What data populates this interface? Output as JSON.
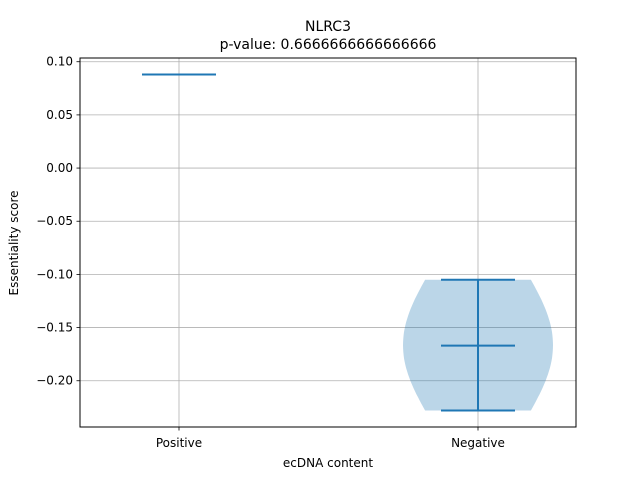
{
  "chart_data": {
    "type": "violin",
    "title": "NLRC3",
    "subtitle": "p-value: 0.6666666666666666",
    "xlabel": "ecDNA content",
    "ylabel": "Essentiality score",
    "categories": [
      "Positive",
      "Negative"
    ],
    "series": [
      {
        "category": "Positive",
        "values": [
          0.088
        ],
        "min": 0.088,
        "median": 0.088,
        "max": 0.088
      },
      {
        "category": "Negative",
        "values": [
          -0.105,
          -0.167,
          -0.228
        ],
        "min": -0.228,
        "median": -0.167,
        "max": -0.105
      }
    ],
    "ylim": [
      -0.2435,
      0.1035
    ],
    "yticks": [
      0.1,
      0.05,
      0.0,
      -0.05,
      -0.1,
      -0.15,
      -0.2
    ],
    "ytick_labels": [
      "0.10",
      "0.05",
      "0.00",
      "−0.05",
      "−0.10",
      "−0.15",
      "−0.20"
    ],
    "grid": true,
    "colors": {
      "line": "#1f77b4",
      "body": "#1f77b4",
      "grid": "#b0b0b0"
    }
  }
}
